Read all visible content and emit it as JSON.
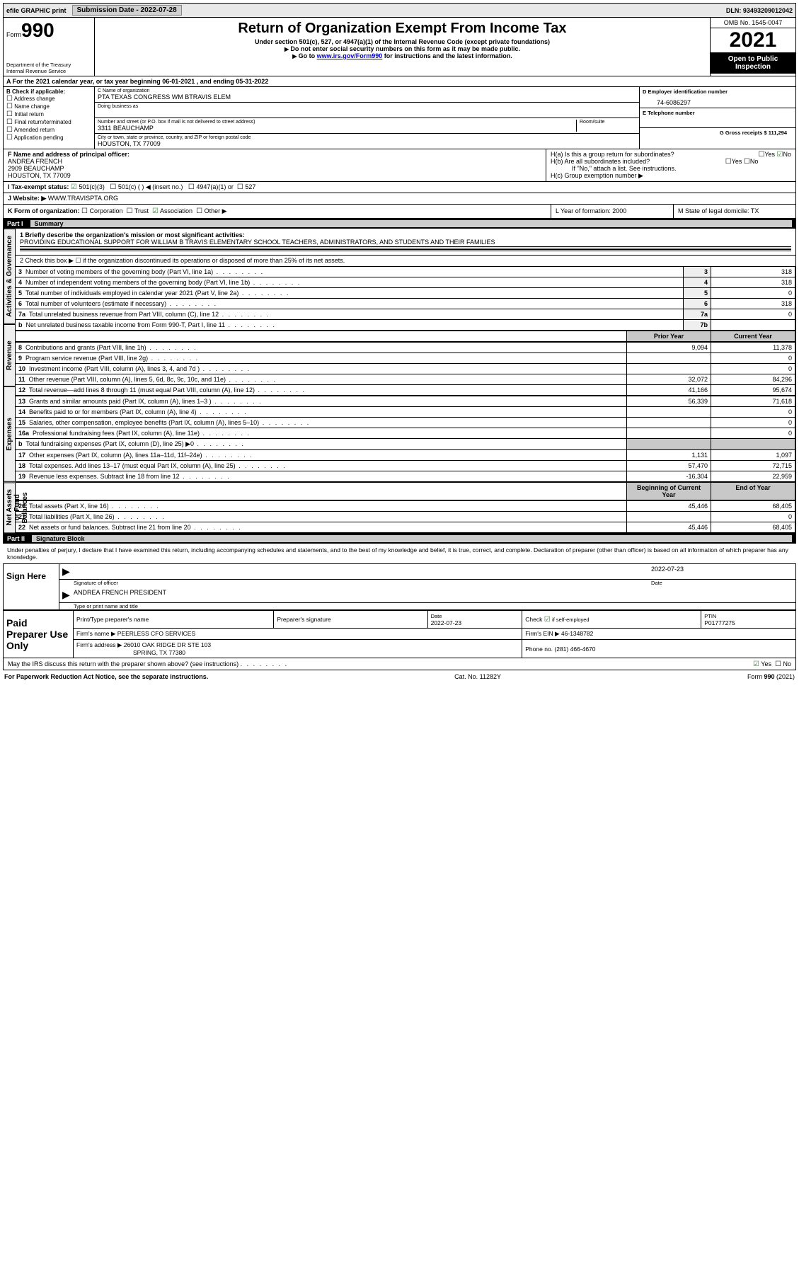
{
  "topbar": {
    "efile": "efile GRAPHIC print",
    "sub_label": "Submission Date - 2022-07-28",
    "dln": "DLN: 93493209012042"
  },
  "header": {
    "form_word": "Form",
    "form_num": "990",
    "dept": "Department of the Treasury",
    "irs": "Internal Revenue Service",
    "title": "Return of Organization Exempt From Income Tax",
    "sub1": "Under section 501(c), 527, or 4947(a)(1) of the Internal Revenue Code (except private foundations)",
    "sub2": "Do not enter social security numbers on this form as it may be made public.",
    "sub3_pre": "Go to ",
    "sub3_link": "www.irs.gov/Form990",
    "sub3_post": " for instructions and the latest information.",
    "omb": "OMB No. 1545-0047",
    "year": "2021",
    "open": "Open to Public Inspection"
  },
  "sectionA": "A  For the 2021 calendar year, or tax year beginning 06-01-2021   , and ending 05-31-2022",
  "boxB": {
    "label": "B Check if applicable:",
    "items": [
      "Address change",
      "Name change",
      "Initial return",
      "Final return/terminated",
      "Amended return",
      "Application pending"
    ]
  },
  "boxC": {
    "name_label": "C Name of organization",
    "name": "PTA TEXAS CONGRESS WM BTRAVIS ELEM",
    "dba_label": "Doing business as",
    "addr_label": "Number and street (or P.O. box if mail is not delivered to street address)",
    "room_label": "Room/suite",
    "addr": "3311 BEAUCHAMP",
    "city_label": "City or town, state or province, country, and ZIP or foreign postal code",
    "city": "HOUSTON, TX  77009"
  },
  "boxD": {
    "label": "D Employer identification number",
    "value": "74-6086297"
  },
  "boxE": {
    "label": "E Telephone number",
    "value": ""
  },
  "boxG": {
    "label": "G Gross receipts $ 111,294"
  },
  "boxF": {
    "label": "F  Name and address of principal officer:",
    "name": "ANDREA FRENCH",
    "addr": "2909 BEAUCHAMP",
    "city": "HOUSTON, TX  77009"
  },
  "boxH": {
    "a": "H(a)  Is this a group return for subordinates?",
    "a_yes": "Yes",
    "a_no": "No",
    "b": "H(b)  Are all subordinates included?",
    "b_yes": "Yes",
    "b_no": "No",
    "b_note": "If \"No,\" attach a list. See instructions.",
    "c": "H(c)  Group exemption number ▶"
  },
  "rowI": {
    "label": "I   Tax-exempt status:",
    "o1": "501(c)(3)",
    "o2": "501(c) (  ) ◀ (insert no.)",
    "o3": "4947(a)(1) or",
    "o4": "527"
  },
  "rowJ": {
    "label": "J   Website: ▶",
    "value": "WWW.TRAVISPTA.ORG"
  },
  "rowK": {
    "label": "K Form of organization:",
    "o1": "Corporation",
    "o2": "Trust",
    "o3": "Association",
    "o4": "Other ▶"
  },
  "rowL": {
    "label": "L Year of formation: 2000"
  },
  "rowM": {
    "label": "M State of legal domicile: TX"
  },
  "part1": {
    "part": "Part I",
    "title": "Summary"
  },
  "mission": {
    "label": "1   Briefly describe the organization's mission or most significant activities:",
    "text": "PROVIDING EDUCATIONAL SUPPORT FOR WILLIAM B TRAVIS ELEMENTARY SCHOOL TEACHERS, ADMINISTRATORS, AND STUDENTS AND THEIR FAMILIES"
  },
  "line2": "2   Check this box ▶ ☐ if the organization discontinued its operations or disposed of more than 25% of its net assets.",
  "sections": {
    "gov": "Activities & Governance",
    "rev": "Revenue",
    "exp": "Expenses",
    "net": "Net Assets or Fund Balances"
  },
  "gov_rows": [
    {
      "n": "3",
      "d": "Number of voting members of the governing body (Part VI, line 1a)",
      "k": "3",
      "v": "318"
    },
    {
      "n": "4",
      "d": "Number of independent voting members of the governing body (Part VI, line 1b)",
      "k": "4",
      "v": "318"
    },
    {
      "n": "5",
      "d": "Total number of individuals employed in calendar year 2021 (Part V, line 2a)",
      "k": "5",
      "v": "0"
    },
    {
      "n": "6",
      "d": "Total number of volunteers (estimate if necessary)",
      "k": "6",
      "v": "318"
    },
    {
      "n": "7a",
      "d": "Total unrelated business revenue from Part VIII, column (C), line 12",
      "k": "7a",
      "v": "0"
    },
    {
      "n": "b",
      "d": "Net unrelated business taxable income from Form 990-T, Part I, line 11",
      "k": "7b",
      "v": ""
    }
  ],
  "col_heads": {
    "prior": "Prior Year",
    "current": "Current Year"
  },
  "rev_rows": [
    {
      "n": "8",
      "d": "Contributions and grants (Part VIII, line 1h)",
      "p": "9,094",
      "c": "11,378"
    },
    {
      "n": "9",
      "d": "Program service revenue (Part VIII, line 2g)",
      "p": "",
      "c": "0"
    },
    {
      "n": "10",
      "d": "Investment income (Part VIII, column (A), lines 3, 4, and 7d )",
      "p": "",
      "c": "0"
    },
    {
      "n": "11",
      "d": "Other revenue (Part VIII, column (A), lines 5, 6d, 8c, 9c, 10c, and 11e)",
      "p": "32,072",
      "c": "84,296"
    },
    {
      "n": "12",
      "d": "Total revenue—add lines 8 through 11 (must equal Part VIII, column (A), line 12)",
      "p": "41,166",
      "c": "95,674"
    }
  ],
  "exp_rows": [
    {
      "n": "13",
      "d": "Grants and similar amounts paid (Part IX, column (A), lines 1–3 )",
      "p": "56,339",
      "c": "71,618"
    },
    {
      "n": "14",
      "d": "Benefits paid to or for members (Part IX, column (A), line 4)",
      "p": "",
      "c": "0"
    },
    {
      "n": "15",
      "d": "Salaries, other compensation, employee benefits (Part IX, column (A), lines 5–10)",
      "p": "",
      "c": "0"
    },
    {
      "n": "16a",
      "d": "Professional fundraising fees (Part IX, column (A), line 11e)",
      "p": "",
      "c": "0"
    },
    {
      "n": "b",
      "d": "Total fundraising expenses (Part IX, column (D), line 25) ▶0",
      "p": "SHADE",
      "c": "SHADE"
    },
    {
      "n": "17",
      "d": "Other expenses (Part IX, column (A), lines 11a–11d, 11f–24e)",
      "p": "1,131",
      "c": "1,097"
    },
    {
      "n": "18",
      "d": "Total expenses. Add lines 13–17 (must equal Part IX, column (A), line 25)",
      "p": "57,470",
      "c": "72,715"
    },
    {
      "n": "19",
      "d": "Revenue less expenses. Subtract line 18 from line 12",
      "p": "-16,304",
      "c": "22,959"
    }
  ],
  "net_heads": {
    "begin": "Beginning of Current Year",
    "end": "End of Year"
  },
  "net_rows": [
    {
      "n": "20",
      "d": "Total assets (Part X, line 16)",
      "p": "45,446",
      "c": "68,405"
    },
    {
      "n": "21",
      "d": "Total liabilities (Part X, line 26)",
      "p": "",
      "c": "0"
    },
    {
      "n": "22",
      "d": "Net assets or fund balances. Subtract line 21 from line 20",
      "p": "45,446",
      "c": "68,405"
    }
  ],
  "part2": {
    "part": "Part II",
    "title": "Signature Block"
  },
  "sig": {
    "decl": "Under penalties of perjury, I declare that I have examined this return, including accompanying schedules and statements, and to the best of my knowledge and belief, it is true, correct, and complete. Declaration of preparer (other than officer) is based on all information of which preparer has any knowledge.",
    "here": "Sign Here",
    "date": "2022-07-23",
    "sig_label": "Signature of officer",
    "date_label": "Date",
    "name": "ANDREA FRENCH  PRESIDENT",
    "name_label": "Type or print name and title"
  },
  "prep": {
    "title": "Paid Preparer Use Only",
    "h1": "Print/Type preparer's name",
    "h2": "Preparer's signature",
    "h3_label": "Date",
    "h3": "2022-07-23",
    "h4_label": "Check",
    "h4_sub": "if self-employed",
    "h5_label": "PTIN",
    "h5": "P01777275",
    "firm_label": "Firm's name    ▶",
    "firm": "PEERLESS CFO SERVICES",
    "ein_label": "Firm's EIN ▶",
    "ein": "46-1348782",
    "addr_label": "Firm's address ▶",
    "addr1": "26010 OAK RIDGE DR STE 103",
    "addr2": "SPRING, TX  77380",
    "phone_label": "Phone no.",
    "phone": "(281) 466-4670"
  },
  "discuss": {
    "q": "May the IRS discuss this return with the preparer shown above? (see instructions)",
    "yes": "Yes",
    "no": "No"
  },
  "footer": {
    "left": "For Paperwork Reduction Act Notice, see the separate instructions.",
    "mid": "Cat. No. 11282Y",
    "right": "Form 990 (2021)"
  }
}
